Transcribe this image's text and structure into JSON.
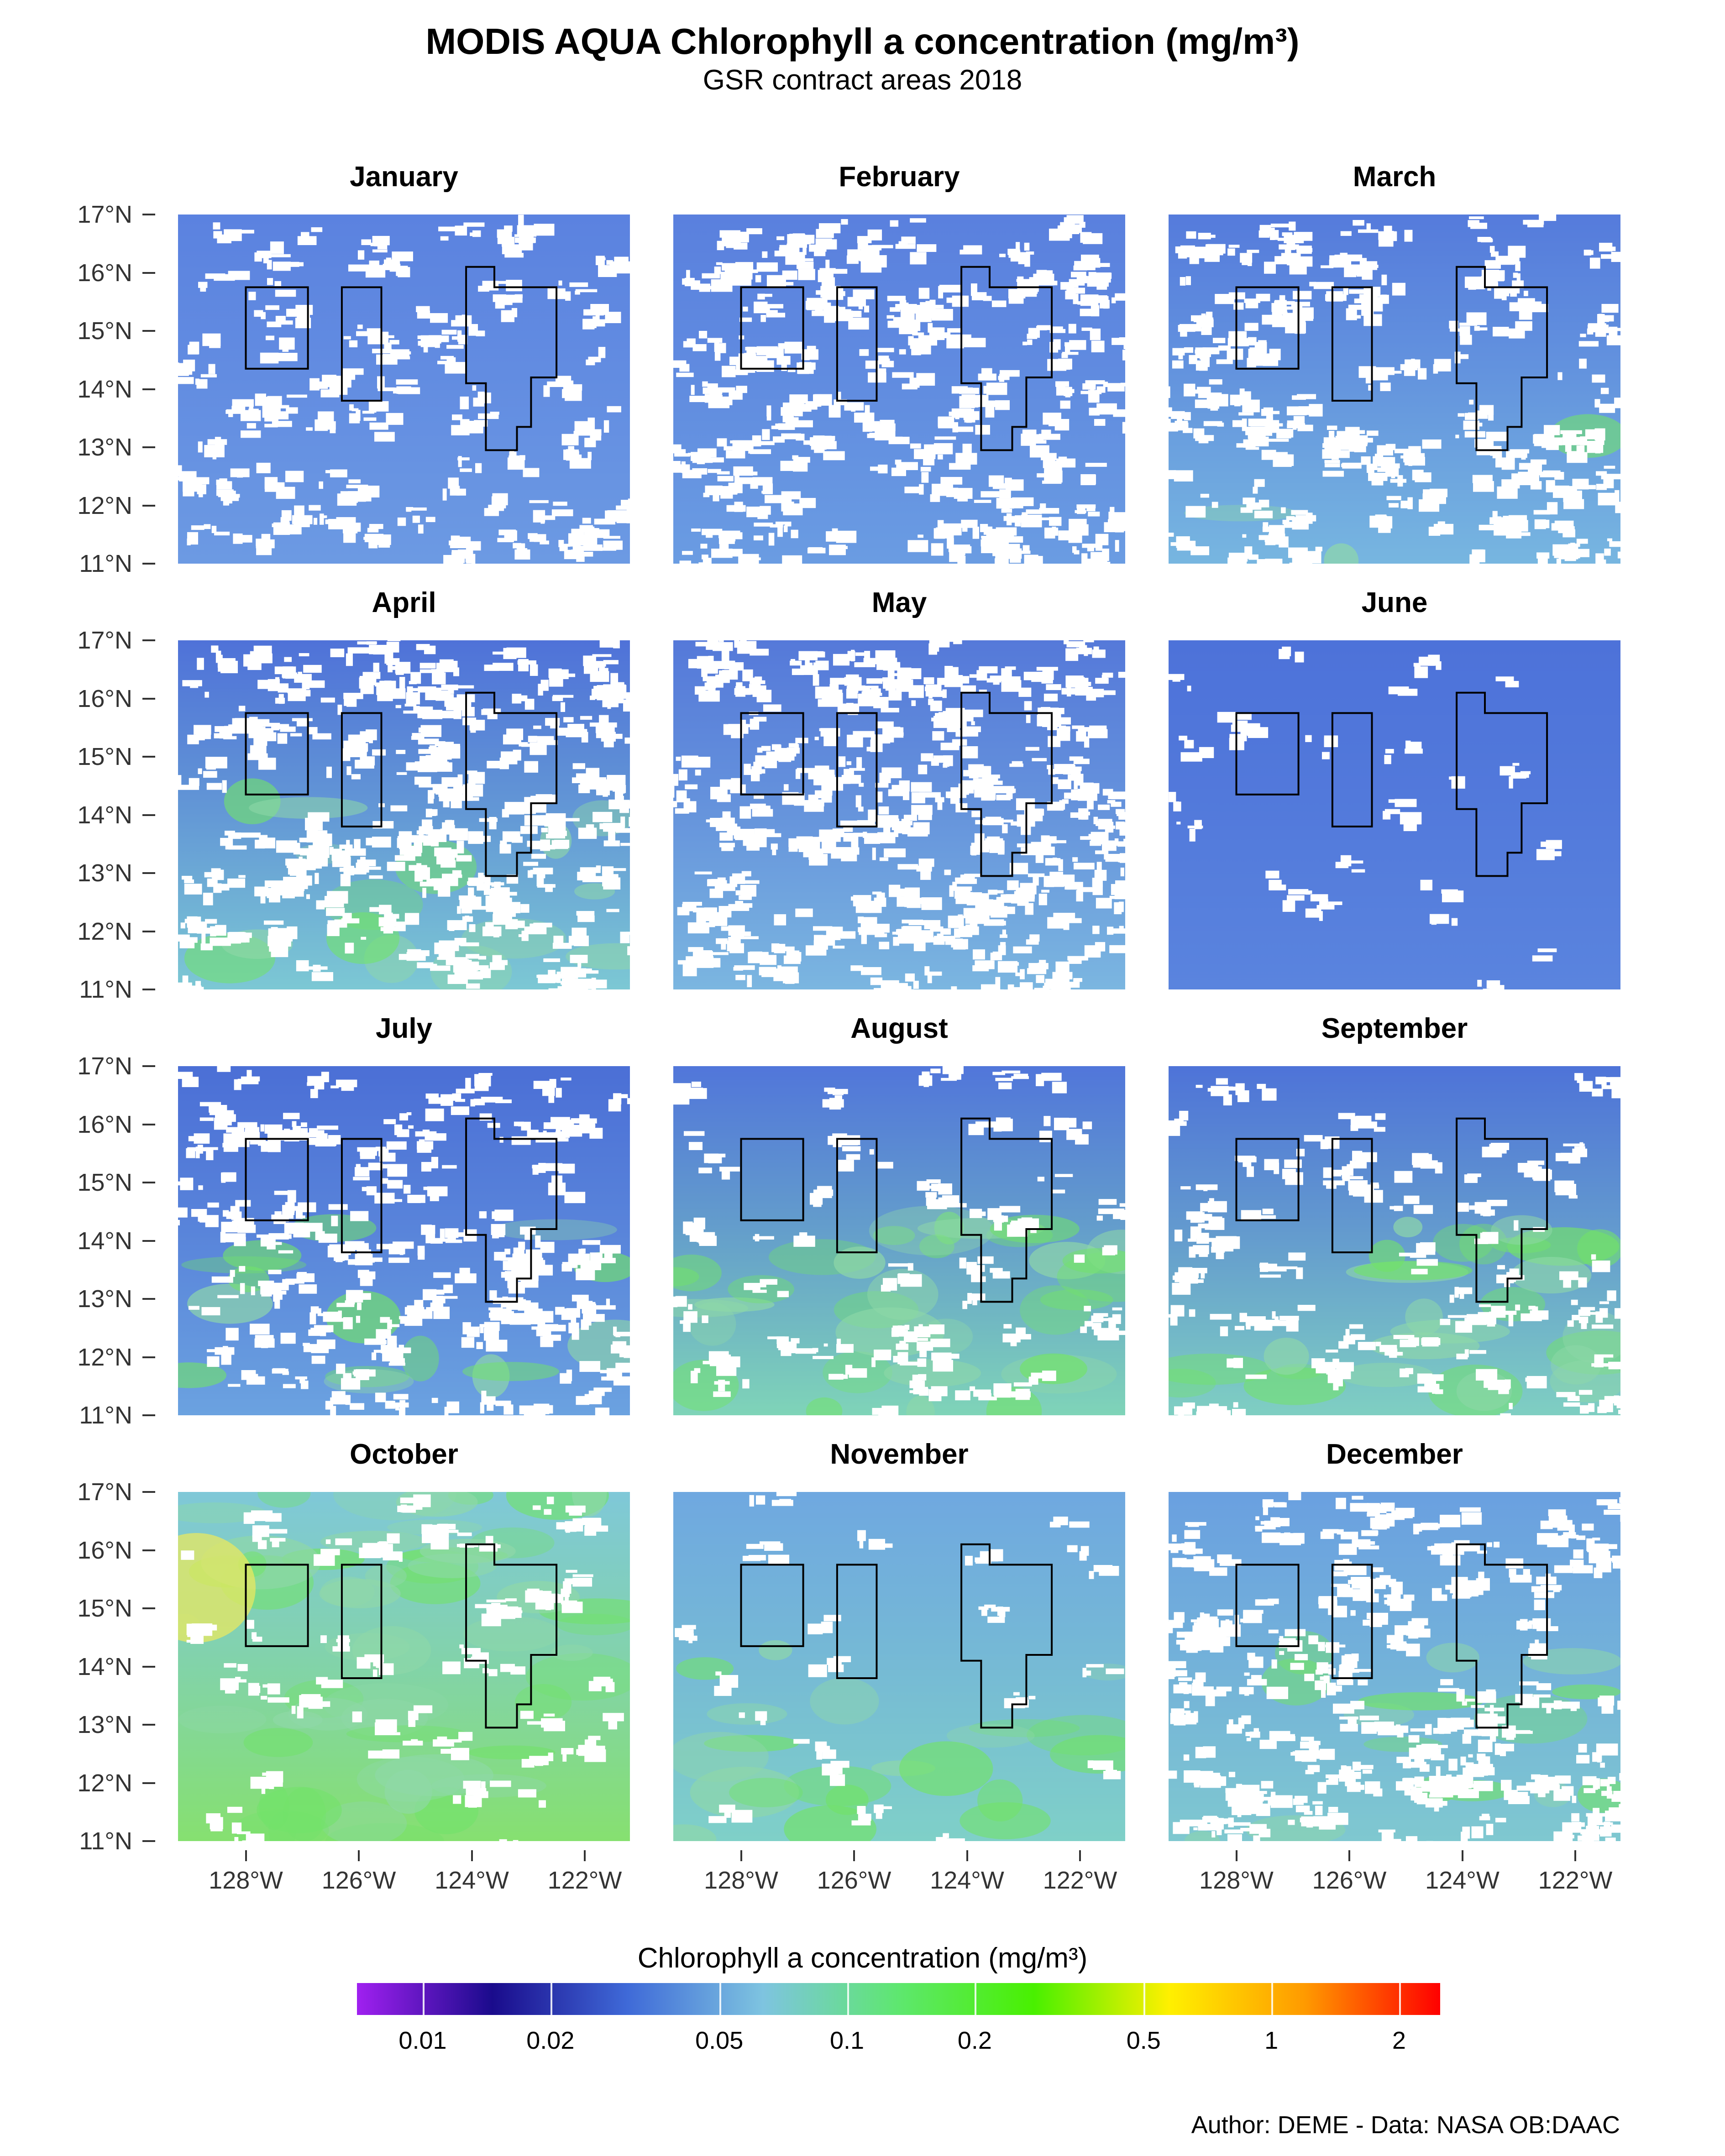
{
  "title": "MODIS AQUA Chlorophyll a concentration (mg/m³)",
  "subtitle": "GSR contract areas 2018",
  "y_axis_labels": [
    "17°N",
    "16°N",
    "15°N",
    "14°N",
    "13°N",
    "12°N",
    "11°N"
  ],
  "x_axis_labels": [
    "128°W",
    "126°W",
    "124°W",
    "122°W"
  ],
  "legend": {
    "title": "Chlorophyll a concentration (mg/m³)",
    "labels": [
      "0.01",
      "0.02",
      "0.05",
      "0.1",
      "0.2",
      "0.5",
      "1",
      "2"
    ],
    "colors": [
      "#a020f0",
      "#1a0b8c",
      "#3f6ad8",
      "#7ec4e0",
      "#5ee76f",
      "#49f000",
      "#fff000",
      "#ff9a00",
      "#ff0000"
    ]
  },
  "caption": "Author: DEME - Data: NASA OB:DAAC",
  "map": {
    "lon_range": [
      -129.2,
      -121.2
    ],
    "lat_range": [
      11,
      17
    ],
    "contract_areas": [
      {
        "name": "area-1",
        "outline": [
          [
            -128.0,
            15.75
          ],
          [
            -126.9,
            15.75
          ],
          [
            -126.9,
            14.35
          ],
          [
            -128.0,
            14.35
          ]
        ]
      },
      {
        "name": "area-2",
        "outline": [
          [
            -126.3,
            15.75
          ],
          [
            -125.6,
            15.75
          ],
          [
            -125.6,
            13.8
          ],
          [
            -126.3,
            13.8
          ]
        ]
      },
      {
        "name": "area-3",
        "outline": [
          [
            -124.1,
            16.1
          ],
          [
            -123.6,
            16.1
          ],
          [
            -123.6,
            15.75
          ],
          [
            -122.5,
            15.75
          ],
          [
            -122.5,
            14.2
          ],
          [
            -122.95,
            14.2
          ],
          [
            -122.95,
            13.35
          ],
          [
            -123.2,
            13.35
          ],
          [
            -123.2,
            12.95
          ],
          [
            -123.75,
            12.95
          ],
          [
            -123.75,
            14.1
          ],
          [
            -124.1,
            14.1
          ]
        ]
      }
    ]
  },
  "panels": [
    {
      "month": "January",
      "base": "#5b82e0",
      "south": "#6c9ae3",
      "cloud": 0.22,
      "green": 0.0
    },
    {
      "month": "February",
      "base": "#5a80de",
      "south": "#6a9ce2",
      "cloud": 0.38,
      "green": 0.0
    },
    {
      "month": "March",
      "base": "#557bdc",
      "south": "#77b6e0",
      "cloud": 0.33,
      "green": 0.05
    },
    {
      "month": "April",
      "base": "#4f72d8",
      "south": "#7cc8d4",
      "cloud": 0.42,
      "green": 0.25
    },
    {
      "month": "May",
      "base": "#5579d9",
      "south": "#7bb6e0",
      "cloud": 0.45,
      "green": 0.0
    },
    {
      "month": "June",
      "base": "#4d72d9",
      "south": "#5a84de",
      "cloud": 0.06,
      "green": 0.0
    },
    {
      "month": "July",
      "base": "#4b6fd6",
      "south": "#6ba2e0",
      "cloud": 0.3,
      "green": 0.25
    },
    {
      "month": "August",
      "base": "#5176da",
      "south": "#7fd4b8",
      "cloud": 0.14,
      "green": 0.55
    },
    {
      "month": "September",
      "base": "#4e73d8",
      "south": "#7fcfc2",
      "cloud": 0.18,
      "green": 0.45
    },
    {
      "month": "October",
      "base": "#7fc8d8",
      "south": "#86e070",
      "cloud": 0.12,
      "green": 0.9
    },
    {
      "month": "November",
      "base": "#6fa8e0",
      "south": "#7fd0c8",
      "cloud": 0.05,
      "green": 0.35
    },
    {
      "month": "December",
      "base": "#6aa0e0",
      "south": "#7fc8d0",
      "cloud": 0.35,
      "green": 0.25
    }
  ]
}
